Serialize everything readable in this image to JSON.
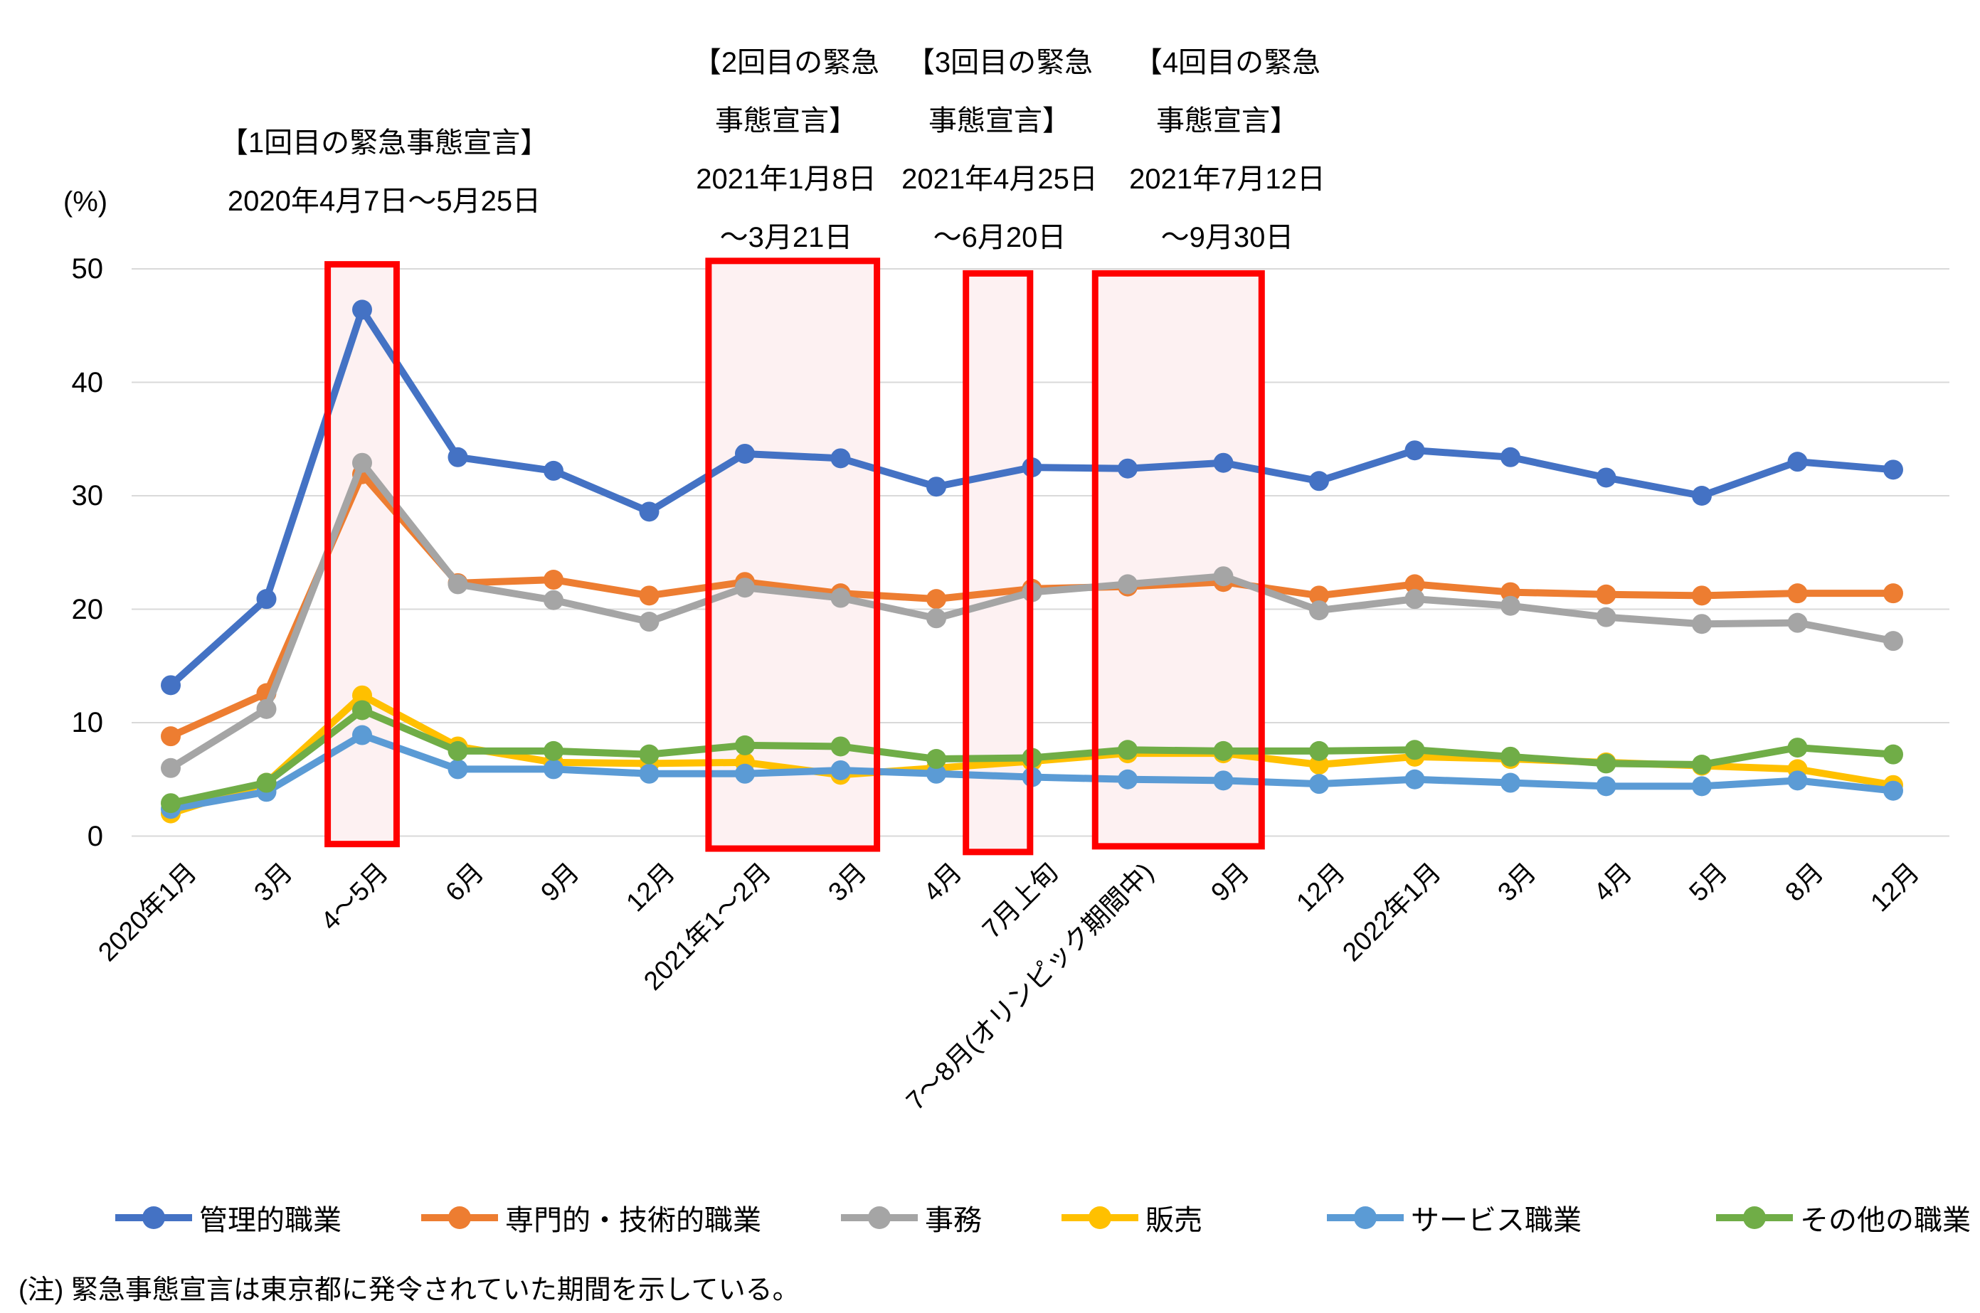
{
  "note": "(注) 緊急事態宣言は東京都に発令されていた期間を示している。",
  "annotations": [
    {
      "lines": [
        "【1回目の緊急事態宣言】",
        "2020年4月7日～5月25日"
      ]
    },
    {
      "lines": [
        "【2回目の緊急",
        "事態宣言】",
        "2021年1月8日",
        "～3月21日"
      ]
    },
    {
      "lines": [
        "【3回目の緊急",
        "事態宣言】",
        "2021年4月25日",
        "～6月20日"
      ]
    },
    {
      "lines": [
        "【4回目の緊急",
        "事態宣言】",
        "2021年7月12日",
        "～9月30日"
      ]
    }
  ],
  "chart_data": {
    "type": "line",
    "title": "",
    "unit_label": "(%)",
    "xlabel": "",
    "ylabel": "(%)",
    "ylim": [
      0,
      50
    ],
    "yticks": [
      0,
      10,
      20,
      30,
      40,
      50
    ],
    "grid": true,
    "legend_position": "bottom",
    "gridline_color": "#D9D9D9",
    "categories": [
      "2020年1月",
      "3月",
      "4～5月",
      "6月",
      "9月",
      "12月",
      "2021年1～2月",
      "3月",
      "4月",
      "7月上旬",
      "7～8月(オリンピック期間中)",
      "9月",
      "12月",
      "2022年1月",
      "3月",
      "4月",
      "5月",
      "8月",
      "12月"
    ],
    "series": [
      {
        "key": "management",
        "name": "管理的職業",
        "color": "#4472C4",
        "values": [
          13.3,
          20.9,
          46.4,
          33.4,
          32.2,
          28.6,
          33.7,
          33.3,
          30.8,
          32.5,
          32.4,
          32.9,
          31.3,
          34.0,
          33.4,
          31.6,
          30.0,
          33.0,
          32.3
        ]
      },
      {
        "key": "professional-technical",
        "name": "専門的・技術的職業",
        "color": "#ED7D31",
        "values": [
          8.8,
          12.6,
          31.9,
          22.3,
          22.6,
          21.2,
          22.4,
          21.4,
          20.9,
          21.8,
          22.0,
          22.4,
          21.2,
          22.2,
          21.5,
          21.3,
          21.2,
          21.4,
          21.4
        ]
      },
      {
        "key": "clerical",
        "name": "事務",
        "color": "#A5A5A5",
        "values": [
          6.0,
          11.2,
          32.9,
          22.2,
          20.8,
          18.9,
          21.9,
          21.0,
          19.2,
          21.5,
          22.2,
          22.9,
          19.9,
          20.9,
          20.3,
          19.3,
          18.7,
          18.8,
          17.2
        ]
      },
      {
        "key": "sales",
        "name": "販売",
        "color": "#FFC000",
        "values": [
          2.0,
          4.7,
          12.4,
          7.9,
          6.5,
          6.4,
          6.5,
          5.4,
          6.0,
          6.6,
          7.3,
          7.3,
          6.3,
          7.0,
          6.8,
          6.5,
          6.2,
          5.9,
          4.5
        ]
      },
      {
        "key": "service",
        "name": "サービス職業",
        "color": "#5B9BD5",
        "values": [
          2.4,
          3.9,
          8.9,
          5.9,
          5.9,
          5.5,
          5.5,
          5.8,
          5.5,
          5.2,
          5.0,
          4.9,
          4.6,
          5.0,
          4.7,
          4.4,
          4.4,
          4.9,
          4.0
        ]
      },
      {
        "key": "other",
        "name": "その他の職業",
        "color": "#70AD47",
        "values": [
          2.9,
          4.7,
          11.1,
          7.5,
          7.5,
          7.2,
          8.0,
          7.9,
          6.8,
          6.9,
          7.6,
          7.5,
          7.5,
          7.6,
          7.0,
          6.4,
          6.3,
          7.8,
          7.2
        ]
      }
    ],
    "highlight_boxes": [
      {
        "label": "1回目の緊急事態宣言",
        "from_index": 1.64,
        "to_index": 2.36,
        "top_value": 50.4,
        "bottom_value": -0.7,
        "stroke": "#FF0000",
        "fill": "#FDF1F2"
      },
      {
        "label": "2回目の緊急事態宣言",
        "from_index": 5.62,
        "to_index": 7.38,
        "top_value": 50.7,
        "bottom_value": -1.1,
        "stroke": "#FF0000",
        "fill": "#FDF1F2"
      },
      {
        "label": "3回目の緊急事態宣言",
        "from_index": 8.31,
        "to_index": 8.98,
        "top_value": 49.6,
        "bottom_value": -1.4,
        "stroke": "#FF0000",
        "fill": "#FDF1F2"
      },
      {
        "label": "4回目の緊急事態宣言",
        "from_index": 9.66,
        "to_index": 11.4,
        "top_value": 49.6,
        "bottom_value": -0.9,
        "stroke": "#FF0000",
        "fill": "#FDF1F2"
      }
    ]
  }
}
